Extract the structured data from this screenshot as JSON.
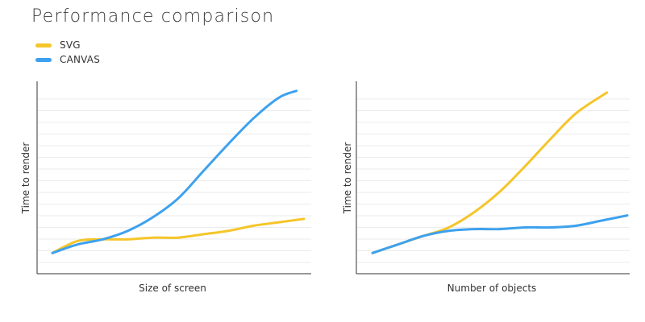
{
  "title": "Performance comparison",
  "legend": {
    "items": [
      {
        "label": "SVG",
        "color": "#f5c52a"
      },
      {
        "label": "CANVAS",
        "color": "#3da1ee"
      }
    ]
  },
  "chart_data": [
    {
      "type": "line",
      "title": "",
      "xlabel": "Size of screen",
      "ylabel": "Time to render",
      "grid": true,
      "legend_position": "top-left",
      "xlim": [
        0,
        100
      ],
      "ylim": [
        0,
        100
      ],
      "series": [
        {
          "name": "SVG",
          "color": "#f5c52a",
          "points": [
            [
              0,
              6
            ],
            [
              10,
              13
            ],
            [
              20,
              14
            ],
            [
              30,
              14
            ],
            [
              40,
              15
            ],
            [
              50,
              15
            ],
            [
              60,
              17
            ],
            [
              70,
              19
            ],
            [
              80,
              22
            ],
            [
              90,
              24
            ],
            [
              100,
              26
            ]
          ]
        },
        {
          "name": "CANVAS",
          "color": "#3da1ee",
          "points": [
            [
              0,
              6
            ],
            [
              10,
              11
            ],
            [
              20,
              14
            ],
            [
              30,
              19
            ],
            [
              40,
              27
            ],
            [
              50,
              38
            ],
            [
              60,
              54
            ],
            [
              70,
              70
            ],
            [
              80,
              85
            ],
            [
              90,
              97
            ],
            [
              97,
              101
            ]
          ]
        }
      ]
    },
    {
      "type": "line",
      "title": "",
      "xlabel": "Number of objects",
      "ylabel": "Time to render",
      "grid": true,
      "legend_position": "top-left",
      "xlim": [
        0,
        100
      ],
      "ylim": [
        0,
        100
      ],
      "series": [
        {
          "name": "SVG",
          "color": "#f5c52a",
          "points": [
            [
              0,
              6
            ],
            [
              10,
              11
            ],
            [
              20,
              16
            ],
            [
              30,
              21
            ],
            [
              40,
              30
            ],
            [
              50,
              42
            ],
            [
              60,
              57
            ],
            [
              70,
              73
            ],
            [
              80,
              88
            ],
            [
              92,
              100
            ]
          ]
        },
        {
          "name": "CANVAS",
          "color": "#3da1ee",
          "points": [
            [
              0,
              6
            ],
            [
              10,
              11
            ],
            [
              20,
              16
            ],
            [
              30,
              19
            ],
            [
              40,
              20
            ],
            [
              50,
              20
            ],
            [
              60,
              21
            ],
            [
              70,
              21
            ],
            [
              80,
              22
            ],
            [
              90,
              25
            ],
            [
              100,
              28
            ]
          ]
        }
      ]
    }
  ]
}
